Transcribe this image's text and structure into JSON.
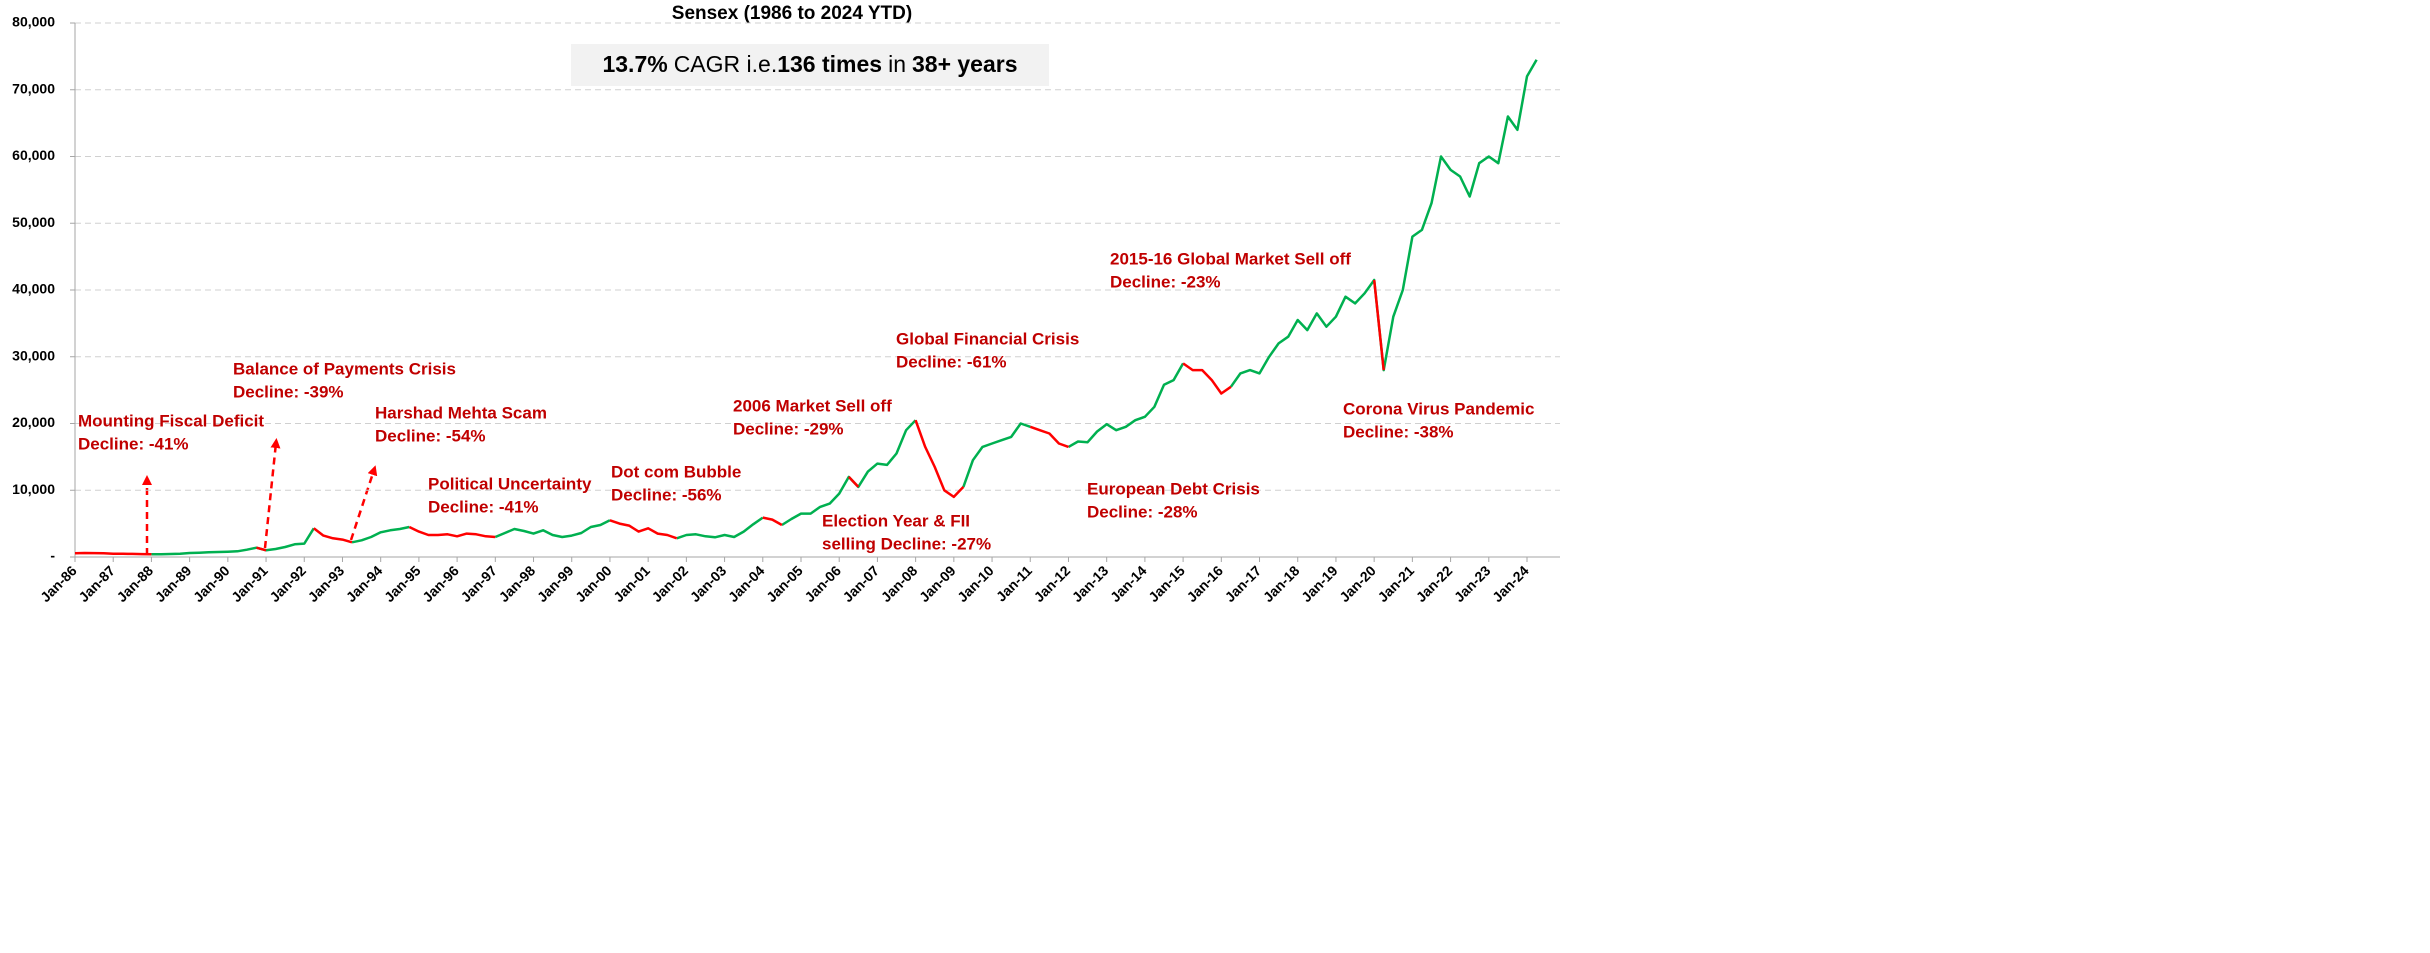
{
  "chart_data": {
    "type": "line",
    "title": "Sensex (1986 to 2024 YTD)",
    "subtitle": [
      {
        "text": "13.7%",
        "bold": true
      },
      {
        "text": "CAGR i.e.",
        "bold": false
      },
      {
        "text": "136 times",
        "bold": true
      },
      {
        "text": "in",
        "bold": false
      },
      {
        "text": "38+ years",
        "bold": true
      }
    ],
    "categories": [
      "Jan-86",
      null,
      null,
      null,
      "Jan-87",
      null,
      null,
      null,
      "Jan-88",
      null,
      null,
      null,
      "Jan-89",
      null,
      null,
      null,
      "Jan-90",
      null,
      null,
      null,
      "Jan-91",
      null,
      null,
      null,
      "Jan-92",
      null,
      null,
      null,
      "Jan-93",
      null,
      null,
      null,
      "Jan-94",
      null,
      null,
      null,
      "Jan-95",
      null,
      null,
      null,
      "Jan-96",
      null,
      null,
      null,
      "Jan-97",
      null,
      null,
      null,
      "Jan-98",
      null,
      null,
      null,
      "Jan-99",
      null,
      null,
      null,
      "Jan-00",
      null,
      null,
      null,
      "Jan-01",
      null,
      null,
      null,
      "Jan-02",
      null,
      null,
      null,
      "Jan-03",
      null,
      null,
      null,
      "Jan-04",
      null,
      null,
      null,
      "Jan-05",
      null,
      null,
      null,
      "Jan-06",
      null,
      null,
      null,
      "Jan-07",
      null,
      null,
      null,
      "Jan-08",
      null,
      null,
      null,
      "Jan-09",
      null,
      null,
      null,
      "Jan-10",
      null,
      null,
      null,
      "Jan-11",
      null,
      null,
      null,
      "Jan-12",
      null,
      null,
      null,
      "Jan-13",
      null,
      null,
      null,
      "Jan-14",
      null,
      null,
      null,
      "Jan-15",
      null,
      null,
      null,
      "Jan-16",
      null,
      null,
      null,
      "Jan-17",
      null,
      null,
      null,
      "Jan-18",
      null,
      null,
      null,
      "Jan-19",
      null,
      null,
      null,
      "Jan-20",
      null,
      null,
      null,
      "Jan-21",
      null,
      null,
      null,
      "Jan-22",
      null,
      null,
      null,
      "Jan-23",
      null,
      null,
      null,
      "Jan-24",
      null
    ],
    "series": [
      {
        "color": "#00b050",
        "values": [
          null,
          null,
          null,
          null,
          null,
          null,
          null,
          null,
          400,
          420,
          450,
          500,
          600,
          650,
          700,
          750,
          800,
          850,
          1100,
          1400,
          1000,
          1200,
          1500,
          1900,
          2000,
          4300,
          null,
          null,
          null,
          2200,
          2500,
          3000,
          3700,
          4000,
          4200,
          4500,
          null,
          null,
          null,
          null,
          null,
          null,
          null,
          null,
          3000,
          3600,
          4200,
          3900,
          3500,
          4000,
          3300,
          3000,
          3200,
          3600,
          4500,
          4800,
          5500,
          null,
          null,
          null,
          null,
          null,
          null,
          2800,
          3300,
          3400,
          3100,
          2950,
          3300,
          3000,
          3800,
          4900,
          5900,
          null,
          4800,
          5700,
          6500,
          6500,
          7500,
          8000,
          9500,
          12000,
          10500,
          12800,
          14000,
          13800,
          15500,
          19000,
          20500,
          null,
          null,
          null,
          null,
          10500,
          14500,
          16500,
          17000,
          17500,
          18000,
          20000,
          19500,
          null,
          null,
          null,
          16500,
          17300,
          17200,
          18800,
          19900,
          19000,
          19500,
          20500,
          21000,
          22500,
          25800,
          26500,
          29000,
          null,
          null,
          null,
          null,
          25500,
          27500,
          28000,
          27500,
          30000,
          32000,
          33000,
          35500,
          34000,
          36500,
          34500,
          36000,
          39000,
          38000,
          39500,
          41500,
          28000,
          36000,
          40000,
          48000,
          49000,
          53000,
          60000,
          58000,
          57000,
          54000,
          59000,
          60000,
          59000,
          66000,
          64000,
          72000,
          74500
        ]
      },
      {
        "color": "#ff0000",
        "values": [
          550,
          600,
          580,
          560,
          500,
          480,
          460,
          440,
          400,
          null,
          null,
          null,
          null,
          null,
          null,
          null,
          null,
          null,
          null,
          1400,
          1000,
          null,
          null,
          null,
          null,
          4300,
          3200,
          2800,
          2600,
          2200,
          null,
          null,
          null,
          null,
          null,
          4500,
          3800,
          3300,
          3300,
          3400,
          3100,
          3500,
          3400,
          3100,
          3000,
          null,
          null,
          null,
          null,
          null,
          null,
          null,
          null,
          null,
          null,
          null,
          5500,
          5000,
          4700,
          3800,
          4300,
          3500,
          3300,
          2800,
          null,
          null,
          null,
          null,
          null,
          null,
          null,
          null,
          5900,
          5600,
          4800,
          null,
          null,
          null,
          null,
          null,
          null,
          12000,
          10500,
          null,
          null,
          null,
          null,
          null,
          20500,
          16500,
          13500,
          10000,
          9000,
          10500,
          null,
          null,
          null,
          null,
          null,
          null,
          19500,
          19000,
          18500,
          17000,
          16500,
          null,
          null,
          null,
          null,
          null,
          null,
          null,
          null,
          null,
          null,
          null,
          29000,
          28000,
          28000,
          26500,
          24500,
          25500,
          null,
          null,
          null,
          null,
          null,
          null,
          null,
          null,
          null,
          null,
          null,
          null,
          null,
          null,
          41500,
          28000,
          null,
          null,
          null,
          null,
          null,
          null,
          null,
          null,
          null,
          null,
          null,
          null,
          null,
          null,
          null,
          null
        ]
      }
    ],
    "ylim": [
      0,
      80000
    ],
    "yticks": [
      {
        "value": 0,
        "label": "-"
      },
      {
        "value": 10000,
        "label": "10,000"
      },
      {
        "value": 20000,
        "label": "20,000"
      },
      {
        "value": 30000,
        "label": "30,000"
      },
      {
        "value": 40000,
        "label": "40,000"
      },
      {
        "value": 50000,
        "label": "50,000"
      },
      {
        "value": 60000,
        "label": "60,000"
      },
      {
        "value": 70000,
        "label": "70,000"
      },
      {
        "value": 80000,
        "label": "80,000"
      }
    ],
    "grid": true,
    "annotations": [
      [
        "Mounting Fiscal Deficit",
        "Decline: -41%"
      ],
      [
        "Balance of Payments Crisis",
        "Decline: -39%"
      ],
      [
        "Harshad Mehta Scam",
        "Decline: -54%"
      ],
      [
        "Political Uncertainty",
        "Decline: -41%"
      ],
      [
        "Dot com Bubble",
        "Decline: -56%"
      ],
      [
        "2006 Market Sell off",
        "Decline: -29%"
      ],
      [
        "Election Year & FII",
        "selling Decline: -27%"
      ],
      [
        "Global Financial Crisis",
        "Decline: -61%"
      ],
      [
        "European Debt Crisis",
        "Decline: -28%"
      ],
      [
        "2015-16 Global Market Sell off",
        "Decline: -23%"
      ],
      [
        "Corona Virus Pandemic",
        "Decline: -38%"
      ]
    ]
  }
}
